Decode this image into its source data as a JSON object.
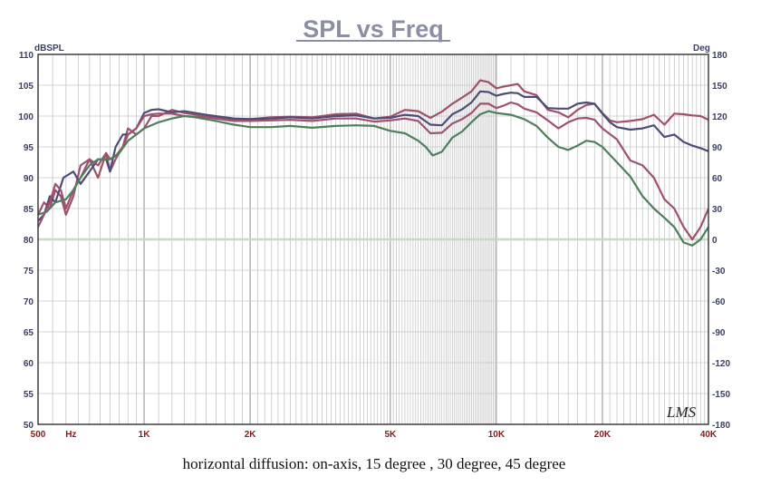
{
  "chart_data": {
    "type": "line",
    "title": "SPL vs Freq",
    "caption": "horizontal diffusion: on-axis, 15 degree , 30 degree, 45 degree",
    "watermark": "LMS",
    "ylabel_left": "dBSPL",
    "ylabel_right": "Deg",
    "xlim": [
      500,
      40000
    ],
    "ylim_left": [
      50,
      110
    ],
    "ylim_right": [
      -180,
      180
    ],
    "x_scale": "log",
    "grid": true,
    "y_ticks_left": [
      "110",
      "105",
      "100",
      "95",
      "90",
      "85",
      "80",
      "75",
      "70",
      "65",
      "60",
      "55",
      "50"
    ],
    "y_ticks_right": [
      "180",
      "150",
      "120",
      "90",
      "60",
      "30",
      "0",
      "-30",
      "-60",
      "-90",
      "-120",
      "-150",
      "-180"
    ],
    "x_tick_labels": [
      {
        "f": 500,
        "label": "500"
      },
      {
        "f": 620,
        "label": "Hz"
      },
      {
        "f": 1000,
        "label": "1K"
      },
      {
        "f": 2000,
        "label": "2K"
      },
      {
        "f": 5000,
        "label": "5K"
      },
      {
        "f": 10000,
        "label": "10K"
      },
      {
        "f": 20000,
        "label": "20K"
      },
      {
        "f": 40000,
        "label": "40K"
      }
    ],
    "reference_line": {
      "deg": 0,
      "color": "#c9d9c4"
    },
    "series": [
      {
        "color": "#a05068",
        "points": [
          [
            500,
            84
          ],
          [
            520,
            86
          ],
          [
            540,
            85
          ],
          [
            560,
            88
          ],
          [
            580,
            87
          ],
          [
            600,
            84
          ],
          [
            630,
            87
          ],
          [
            660,
            92
          ],
          [
            700,
            93
          ],
          [
            740,
            90
          ],
          [
            780,
            94
          ],
          [
            800,
            91
          ],
          [
            830,
            93
          ],
          [
            870,
            95
          ],
          [
            900,
            98
          ],
          [
            950,
            97
          ],
          [
            1000,
            98
          ],
          [
            1050,
            100
          ],
          [
            1100,
            100
          ],
          [
            1200,
            101
          ],
          [
            1300,
            100.5
          ],
          [
            1500,
            100
          ],
          [
            1800,
            99.5
          ],
          [
            2000,
            99.5
          ],
          [
            2300,
            99.8
          ],
          [
            2600,
            99.9
          ],
          [
            3000,
            99.8
          ],
          [
            3500,
            100.3
          ],
          [
            4000,
            100.4
          ],
          [
            4500,
            99.6
          ],
          [
            5000,
            99.9
          ],
          [
            5500,
            101
          ],
          [
            6000,
            100.8
          ],
          [
            6500,
            99.7
          ],
          [
            7000,
            100.7
          ],
          [
            7500,
            102
          ],
          [
            8000,
            103
          ],
          [
            8500,
            104
          ],
          [
            9000,
            105.8
          ],
          [
            9500,
            105.5
          ],
          [
            10000,
            104.5
          ],
          [
            10500,
            104.8
          ],
          [
            11000,
            105
          ],
          [
            11500,
            105.2
          ],
          [
            12000,
            104
          ],
          [
            13000,
            103.4
          ],
          [
            14000,
            101
          ],
          [
            15000,
            100.6
          ],
          [
            16000,
            99.8
          ],
          [
            17000,
            101
          ],
          [
            18000,
            101.8
          ],
          [
            19000,
            102
          ],
          [
            20000,
            100.5
          ],
          [
            21000,
            99.3
          ],
          [
            22000,
            99
          ],
          [
            24000,
            99.2
          ],
          [
            26000,
            99.5
          ],
          [
            28000,
            100.2
          ],
          [
            30000,
            98.6
          ],
          [
            32000,
            100.4
          ],
          [
            34000,
            100.3
          ],
          [
            36000,
            100.1
          ],
          [
            38000,
            100
          ],
          [
            40000,
            99.4
          ]
        ]
      },
      {
        "color": "#4c4c78",
        "points": [
          [
            500,
            83
          ],
          [
            520,
            84
          ],
          [
            540,
            87
          ],
          [
            560,
            86
          ],
          [
            590,
            90
          ],
          [
            630,
            91
          ],
          [
            660,
            89
          ],
          [
            700,
            91
          ],
          [
            740,
            93
          ],
          [
            780,
            93
          ],
          [
            800,
            91
          ],
          [
            830,
            95
          ],
          [
            870,
            97
          ],
          [
            900,
            97
          ],
          [
            950,
            98
          ],
          [
            1000,
            100.5
          ],
          [
            1050,
            101
          ],
          [
            1100,
            101.1
          ],
          [
            1200,
            100.6
          ],
          [
            1300,
            100.8
          ],
          [
            1500,
            100.2
          ],
          [
            1800,
            99.6
          ],
          [
            2000,
            99.5
          ],
          [
            2300,
            99.6
          ],
          [
            2600,
            99.8
          ],
          [
            3000,
            99.6
          ],
          [
            3500,
            100
          ],
          [
            4000,
            100.1
          ],
          [
            4500,
            99.6
          ],
          [
            5000,
            99.7
          ],
          [
            5500,
            100.2
          ],
          [
            6000,
            100
          ],
          [
            6500,
            98.6
          ],
          [
            7000,
            98.5
          ],
          [
            7500,
            100.3
          ],
          [
            8000,
            101.1
          ],
          [
            8500,
            102.2
          ],
          [
            9000,
            104
          ],
          [
            9500,
            103.9
          ],
          [
            10000,
            103.3
          ],
          [
            10500,
            103.6
          ],
          [
            11000,
            103.8
          ],
          [
            11500,
            103.7
          ],
          [
            12000,
            103.1
          ],
          [
            13000,
            103.1
          ],
          [
            14000,
            101.3
          ],
          [
            15000,
            101.2
          ],
          [
            16000,
            101.2
          ],
          [
            17000,
            102
          ],
          [
            18000,
            102.2
          ],
          [
            19000,
            102
          ],
          [
            20000,
            100.4
          ],
          [
            21000,
            99
          ],
          [
            22000,
            98.2
          ],
          [
            24000,
            97.8
          ],
          [
            26000,
            98
          ],
          [
            28000,
            98.5
          ],
          [
            30000,
            96.6
          ],
          [
            32000,
            97
          ],
          [
            34000,
            95.8
          ],
          [
            36000,
            95.2
          ],
          [
            38000,
            94.8
          ],
          [
            40000,
            94.3
          ]
        ]
      },
      {
        "color": "#a0506e",
        "points": [
          [
            500,
            82
          ],
          [
            520,
            84
          ],
          [
            540,
            86
          ],
          [
            560,
            89
          ],
          [
            580,
            88
          ],
          [
            600,
            85
          ],
          [
            630,
            88
          ],
          [
            660,
            90
          ],
          [
            700,
            93
          ],
          [
            740,
            92
          ],
          [
            780,
            94
          ],
          [
            800,
            93
          ],
          [
            830,
            93.5
          ],
          [
            870,
            95
          ],
          [
            900,
            97
          ],
          [
            950,
            98
          ],
          [
            1000,
            100
          ],
          [
            1050,
            100.3
          ],
          [
            1100,
            100.4
          ],
          [
            1200,
            100.4
          ],
          [
            1300,
            100
          ],
          [
            1500,
            99.8
          ],
          [
            1800,
            99.2
          ],
          [
            2000,
            99.2
          ],
          [
            2300,
            99.3
          ],
          [
            2600,
            99.4
          ],
          [
            3000,
            99.2
          ],
          [
            3500,
            99.6
          ],
          [
            4000,
            99.6
          ],
          [
            4500,
            99.1
          ],
          [
            5000,
            99.3
          ],
          [
            5500,
            99.6
          ],
          [
            6000,
            99.2
          ],
          [
            6500,
            97.2
          ],
          [
            7000,
            97.3
          ],
          [
            7500,
            98.8
          ],
          [
            8000,
            99.5
          ],
          [
            8500,
            100.5
          ],
          [
            9000,
            102
          ],
          [
            9500,
            102
          ],
          [
            10000,
            101.3
          ],
          [
            10500,
            101.7
          ],
          [
            11000,
            102.2
          ],
          [
            11500,
            101.9
          ],
          [
            12000,
            101.2
          ],
          [
            13000,
            100.6
          ],
          [
            14000,
            99.3
          ],
          [
            15000,
            98
          ],
          [
            16000,
            99
          ],
          [
            17000,
            99.6
          ],
          [
            18000,
            99.7
          ],
          [
            19000,
            99.4
          ],
          [
            20000,
            98
          ],
          [
            22000,
            96.2
          ],
          [
            24000,
            92.8
          ],
          [
            26000,
            92
          ],
          [
            28000,
            90
          ],
          [
            30000,
            86.5
          ],
          [
            32000,
            85
          ],
          [
            34000,
            82
          ],
          [
            36000,
            80
          ],
          [
            38000,
            82
          ],
          [
            40000,
            85
          ]
        ]
      },
      {
        "color": "#4d7f5c",
        "points": [
          [
            500,
            84
          ],
          [
            530,
            84.5
          ],
          [
            560,
            86
          ],
          [
            600,
            86.5
          ],
          [
            630,
            88
          ],
          [
            660,
            90
          ],
          [
            700,
            92
          ],
          [
            740,
            93
          ],
          [
            800,
            93
          ],
          [
            850,
            94
          ],
          [
            900,
            96
          ],
          [
            950,
            97
          ],
          [
            1000,
            98
          ],
          [
            1100,
            99
          ],
          [
            1200,
            99.6
          ],
          [
            1300,
            100
          ],
          [
            1400,
            99.8
          ],
          [
            1600,
            99.2
          ],
          [
            1800,
            98.6
          ],
          [
            2000,
            98.2
          ],
          [
            2300,
            98.2
          ],
          [
            2600,
            98.4
          ],
          [
            3000,
            98.1
          ],
          [
            3500,
            98.4
          ],
          [
            4000,
            98.5
          ],
          [
            4500,
            98.4
          ],
          [
            5000,
            97.6
          ],
          [
            5500,
            97.2
          ],
          [
            6000,
            96
          ],
          [
            6300,
            95
          ],
          [
            6600,
            93.6
          ],
          [
            7000,
            94.2
          ],
          [
            7500,
            96.5
          ],
          [
            8000,
            97.5
          ],
          [
            8500,
            99
          ],
          [
            9000,
            100.3
          ],
          [
            9500,
            100.8
          ],
          [
            10000,
            100.5
          ],
          [
            11000,
            100.2
          ],
          [
            12000,
            99.5
          ],
          [
            13000,
            98.4
          ],
          [
            14000,
            96.5
          ],
          [
            15000,
            95
          ],
          [
            16000,
            94.5
          ],
          [
            17000,
            95.2
          ],
          [
            18000,
            96
          ],
          [
            19000,
            95.8
          ],
          [
            20000,
            95
          ],
          [
            22000,
            92.5
          ],
          [
            24000,
            90.2
          ],
          [
            26000,
            87
          ],
          [
            28000,
            85
          ],
          [
            30000,
            83.5
          ],
          [
            32000,
            82
          ],
          [
            34000,
            79.5
          ],
          [
            36000,
            79
          ],
          [
            38000,
            80
          ],
          [
            40000,
            82
          ]
        ]
      }
    ]
  }
}
